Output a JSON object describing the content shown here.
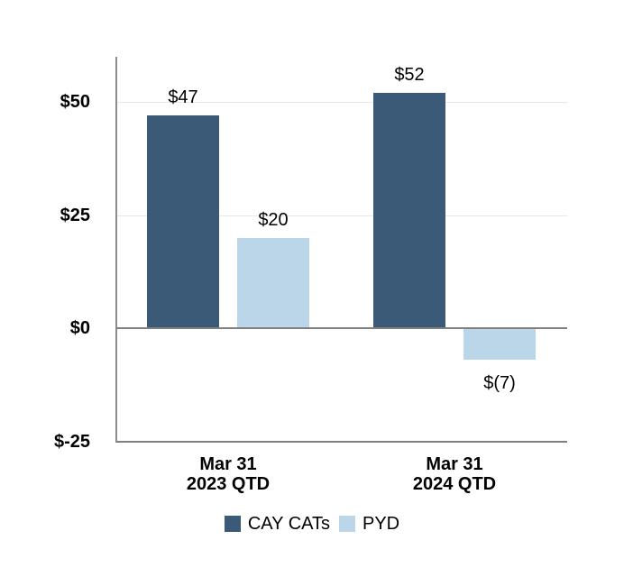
{
  "chart_data": {
    "type": "bar",
    "title": "",
    "xlabel": "",
    "ylabel": "",
    "categories": [
      {
        "line1": "Mar 31",
        "line2": "2023 QTD"
      },
      {
        "line1": "Mar 31",
        "line2": "2024 QTD"
      }
    ],
    "series": [
      {
        "name": "CAY CATs",
        "color": "#3A5A78",
        "values": [
          47,
          52
        ],
        "labels": [
          "$47",
          "$52"
        ]
      },
      {
        "name": "PYD",
        "color": "#BCD6E9",
        "values": [
          20,
          -7
        ],
        "labels": [
          "$20",
          "$(7)"
        ]
      }
    ],
    "y_axis": {
      "ylim": [
        -25,
        60
      ],
      "ticks": [
        {
          "label": "$50",
          "value": 50,
          "line": "grid"
        },
        {
          "label": "$25",
          "value": 25,
          "line": "grid"
        },
        {
          "label": "$0",
          "value": 0,
          "line": "zero"
        },
        {
          "label": "$-25",
          "value": -25,
          "line": "axis"
        }
      ]
    },
    "legend": {
      "position": "bottom",
      "entries": [
        "CAY CATs",
        "PYD"
      ]
    },
    "colors": {
      "gridline": "#E8E8E8",
      "axis_line": "#8C8C8C",
      "zero_line": "#808080",
      "text": "#000000"
    }
  }
}
